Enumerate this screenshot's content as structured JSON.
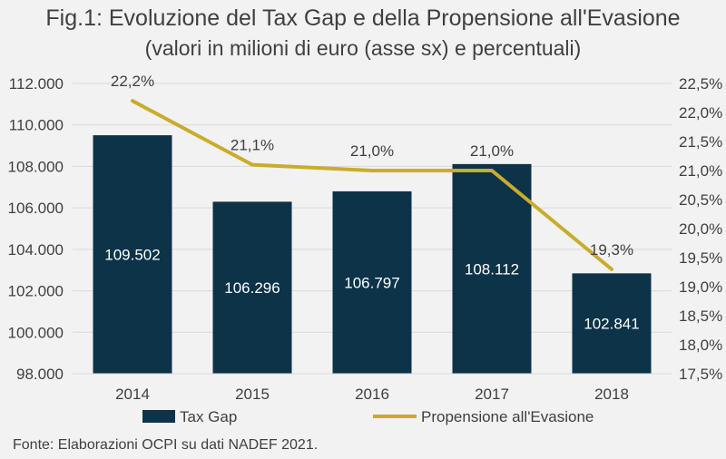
{
  "title": "Fig.1: Evoluzione del Tax Gap e della Propensione all'Evasione",
  "subtitle": "(valori in milioni di euro (asse sx) e percentuali)",
  "source": "Fonte: Elaborazioni OCPI su dati NADEF 2021.",
  "colors": {
    "bar": "#0d3349",
    "line": "#c9ac2c",
    "grid": "#d9d9d9",
    "text": "#404040",
    "barLabel": "#ffffff"
  },
  "chart_data": {
    "type": "bar",
    "categories": [
      "2014",
      "2015",
      "2016",
      "2017",
      "2018"
    ],
    "series": [
      {
        "name": "Tax Gap",
        "type": "bar",
        "axis": "left",
        "values": [
          109502,
          106296,
          106797,
          108112,
          102841
        ],
        "labels": [
          "109.502",
          "106.296",
          "106.797",
          "108.112",
          "102.841"
        ]
      },
      {
        "name": "Propensione all'Evasione",
        "type": "line",
        "axis": "right",
        "values": [
          22.2,
          21.1,
          21.0,
          21.0,
          19.3
        ],
        "labels": [
          "22,2%",
          "21,1%",
          "21,0%",
          "21,0%",
          "19,3%"
        ]
      }
    ],
    "y_left": {
      "min": 98000,
      "max": 112000,
      "ticks": [
        "98.000",
        "100.000",
        "102.000",
        "104.000",
        "106.000",
        "108.000",
        "110.000",
        "112.000"
      ]
    },
    "y_right": {
      "min": 17.5,
      "max": 22.5,
      "ticks": [
        "17,5%",
        "18,0%",
        "18,5%",
        "19,0%",
        "19,5%",
        "20,0%",
        "20,5%",
        "21,0%",
        "21,5%",
        "22,0%",
        "22,5%"
      ]
    },
    "legend_position": "bottom",
    "grid": true
  }
}
